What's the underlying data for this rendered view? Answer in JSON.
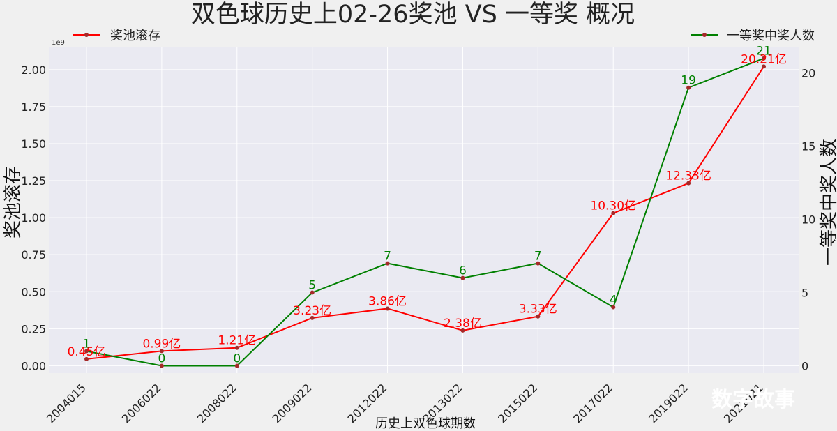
{
  "chart_data": {
    "type": "line",
    "title": "双色球历史上02-26奖池 VS 一等奖 概况",
    "xlabel": "历史上双色球期数",
    "y_left_label": "奖池滚存",
    "y_right_label": "一等奖中奖人数",
    "y_left_multiplier": "1e9",
    "categories": [
      "2004015",
      "2006022",
      "2008022",
      "2009022",
      "2012022",
      "2013022",
      "2015022",
      "2017022",
      "2019022",
      "2021021"
    ],
    "y_left_ticks": [
      "0.00",
      "0.25",
      "0.50",
      "0.75",
      "1.00",
      "1.25",
      "1.50",
      "1.75",
      "2.00"
    ],
    "y_right_ticks": [
      "0",
      "5",
      "10",
      "15",
      "20"
    ],
    "y_left_range": [
      -0.05,
      2.15
    ],
    "y_right_range": [
      -0.5,
      21.75
    ],
    "grid": true,
    "series": [
      {
        "name": "奖池滚存",
        "axis": "left",
        "color": "#ff0000",
        "values": [
          0.045,
          0.099,
          0.121,
          0.323,
          0.386,
          0.238,
          0.333,
          1.03,
          1.233,
          2.021
        ],
        "labels": [
          "0.45亿",
          "0.99亿",
          "1.21亿",
          "3.23亿",
          "3.86亿",
          "2.38亿",
          "3.33亿",
          "10.30亿",
          "12.33亿",
          "20.21亿"
        ],
        "legend_position": "top-left"
      },
      {
        "name": "一等奖中奖人数",
        "axis": "right",
        "color": "#008000",
        "values": [
          1,
          0,
          0,
          5,
          7,
          6,
          7,
          4,
          19,
          21
        ],
        "labels": [
          "1",
          "0",
          "0",
          "5",
          "7",
          "6",
          "7",
          "4",
          "19",
          "21"
        ],
        "legend_position": "top-right"
      }
    ],
    "marker_color": "#a52a2a"
  },
  "watermark": "数字故事"
}
